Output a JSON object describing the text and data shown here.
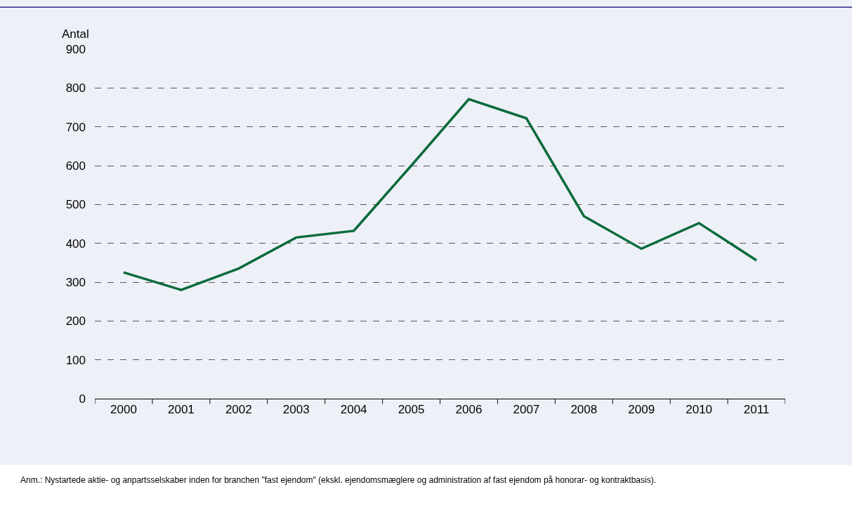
{
  "chart_data": {
    "type": "line",
    "ylabel": "Antal",
    "categories": [
      "2000",
      "2001",
      "2002",
      "2003",
      "2004",
      "2005",
      "2006",
      "2007",
      "2008",
      "2009",
      "2010",
      "2011"
    ],
    "series": [
      {
        "color": "#0a6b3c",
        "values": [
          325,
          280,
          335,
          415,
          432,
          600,
          771,
          722,
          470,
          386,
          452,
          356
        ]
      }
    ],
    "ylim": [
      0,
      900
    ],
    "yticks": [
      0,
      100,
      200,
      300,
      400,
      500,
      600,
      700,
      800,
      900
    ],
    "grid": "y",
    "legend": false,
    "marker": "none",
    "line_style": "solid",
    "annotations": [
      "Anm.: Nystartede aktie- og anpartsselskaber inden for branchen \"fast ejendom\" (ekskl. ejendomsmæglere og administration af fast ejendom på honorar- og kontraktbasis)."
    ]
  }
}
